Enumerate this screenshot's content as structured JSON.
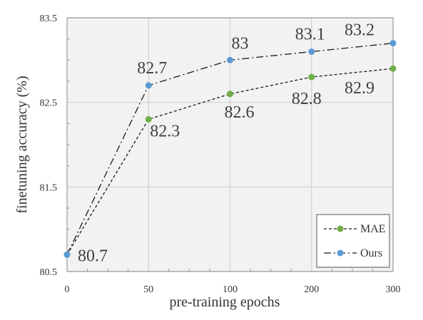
{
  "chart_data": {
    "type": "line",
    "categories": [
      "0",
      "50",
      "100",
      "200",
      "300"
    ],
    "series": [
      {
        "name": "MAE",
        "values": [
          80.7,
          82.3,
          82.6,
          82.8,
          82.9
        ],
        "labels": [
          "80.7",
          "82.3",
          "82.6",
          "82.8",
          "82.9"
        ],
        "color": "#70ad47",
        "line_style": "dashed"
      },
      {
        "name": "Ours",
        "values": [
          80.7,
          82.7,
          83.0,
          83.1,
          83.2
        ],
        "labels": [
          "",
          "82.7",
          "83",
          "83.1",
          "83.2"
        ],
        "color": "#5b9bd5",
        "line_style": "dash-dot"
      }
    ],
    "xlabel": "pre-training epochs",
    "ylabel": "finetuning accuracy (%)",
    "ylim": [
      80.5,
      83.5
    ],
    "yticks": [
      "80.5",
      "81.5",
      "82.5",
      "83.5"
    ],
    "grid": true,
    "legend_position": "bottom-right",
    "plot_background": "#f2f2f2"
  }
}
